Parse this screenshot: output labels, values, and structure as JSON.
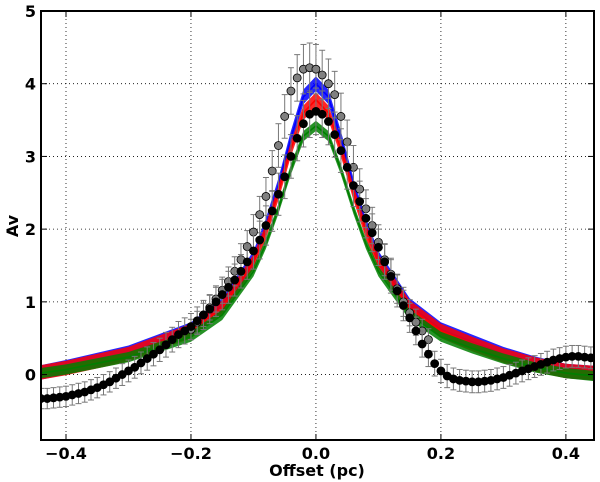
{
  "chart_data": {
    "type": "line",
    "title": "",
    "xlabel": "Offset (pc)",
    "ylabel": "Av",
    "xlim": [
      -0.44,
      0.445
    ],
    "ylim": [
      -0.9,
      5.0
    ],
    "xticks": [
      -0.4,
      -0.2,
      0.0,
      0.2,
      0.4
    ],
    "xtick_labels": [
      "−0.4",
      "−0.2",
      "0.0",
      "0.2",
      "0.4"
    ],
    "yticks": [
      0,
      1,
      2,
      3,
      4,
      5
    ],
    "ytick_labels": [
      "0",
      "1",
      "2",
      "3",
      "4",
      "5"
    ],
    "grid": true,
    "colors": {
      "blue": "#0000ff",
      "red": "#ff0000",
      "green": "#007f00",
      "gray_marker": "#808080",
      "black_marker": "#000000",
      "errorbar": "#777777"
    },
    "model_series": [
      {
        "name": "blue",
        "color": "#0000ff",
        "peak": 4.0,
        "band": 0.1,
        "x": [
          -0.44,
          -0.4,
          -0.3,
          -0.2,
          -0.15,
          -0.1,
          -0.08,
          -0.06,
          -0.04,
          -0.02,
          0.0,
          0.02,
          0.04,
          0.06,
          0.08,
          0.1,
          0.15,
          0.2,
          0.25,
          0.3,
          0.35,
          0.4,
          0.445
        ],
        "values": [
          0.03,
          0.1,
          0.3,
          0.62,
          0.95,
          1.6,
          2.05,
          2.6,
          3.25,
          3.82,
          4.0,
          3.82,
          3.25,
          2.6,
          2.05,
          1.6,
          0.95,
          0.62,
          0.45,
          0.28,
          0.15,
          0.05,
          0.02
        ]
      },
      {
        "name": "red",
        "color": "#ff0000",
        "peak": 3.78,
        "band": 0.1,
        "x": [
          -0.44,
          -0.4,
          -0.3,
          -0.2,
          -0.15,
          -0.1,
          -0.08,
          -0.06,
          -0.04,
          -0.02,
          0.0,
          0.02,
          0.04,
          0.06,
          0.08,
          0.1,
          0.15,
          0.2,
          0.25,
          0.3,
          0.35,
          0.4,
          0.445
        ],
        "values": [
          0.03,
          0.09,
          0.28,
          0.6,
          0.92,
          1.55,
          1.97,
          2.5,
          3.1,
          3.6,
          3.78,
          3.6,
          3.1,
          2.5,
          1.97,
          1.55,
          0.92,
          0.6,
          0.42,
          0.26,
          0.14,
          0.05,
          0.02
        ]
      },
      {
        "name": "green",
        "color": "#007f00",
        "peak": 3.42,
        "band": 0.07,
        "x": [
          -0.44,
          -0.4,
          -0.3,
          -0.2,
          -0.15,
          -0.1,
          -0.08,
          -0.06,
          -0.04,
          -0.02,
          0.0,
          0.02,
          0.04,
          0.06,
          0.08,
          0.1,
          0.15,
          0.2,
          0.25,
          0.3,
          0.35,
          0.4,
          0.445
        ],
        "values": [
          0.02,
          0.07,
          0.24,
          0.52,
          0.82,
          1.42,
          1.8,
          2.28,
          2.82,
          3.28,
          3.42,
          3.28,
          2.82,
          2.28,
          1.8,
          1.42,
          0.82,
          0.52,
          0.36,
          0.22,
          0.1,
          0.02,
          -0.02
        ]
      }
    ],
    "observed_series": [
      {
        "name": "gray",
        "marker": "circle",
        "color": "#808080",
        "x": [
          -0.2,
          -0.19,
          -0.18,
          -0.17,
          -0.16,
          -0.15,
          -0.14,
          -0.13,
          -0.12,
          -0.11,
          -0.1,
          -0.09,
          -0.08,
          -0.07,
          -0.06,
          -0.05,
          -0.04,
          -0.03,
          -0.02,
          -0.01,
          0.0,
          0.01,
          0.02,
          0.03,
          0.04,
          0.05,
          0.06,
          0.07,
          0.08,
          0.09,
          0.1,
          0.11,
          0.12,
          0.13,
          0.14,
          0.15,
          0.16,
          0.17,
          0.18
        ],
        "values": [
          0.62,
          0.72,
          0.82,
          0.92,
          1.04,
          1.16,
          1.28,
          1.42,
          1.58,
          1.76,
          1.96,
          2.2,
          2.45,
          2.8,
          3.15,
          3.55,
          3.9,
          4.08,
          4.2,
          4.22,
          4.2,
          4.12,
          4.0,
          3.85,
          3.55,
          3.2,
          2.85,
          2.55,
          2.28,
          2.05,
          1.82,
          1.58,
          1.38,
          1.18,
          1.0,
          0.85,
          0.72,
          0.6,
          0.48
        ],
        "errors": [
          0.14,
          0.15,
          0.16,
          0.17,
          0.18,
          0.18,
          0.2,
          0.2,
          0.22,
          0.22,
          0.24,
          0.25,
          0.26,
          0.28,
          0.3,
          0.3,
          0.32,
          0.32,
          0.34,
          0.34,
          0.34,
          0.34,
          0.34,
          0.32,
          0.32,
          0.3,
          0.3,
          0.28,
          0.26,
          0.25,
          0.24,
          0.22,
          0.22,
          0.2,
          0.2,
          0.18,
          0.18,
          0.16,
          0.15
        ]
      },
      {
        "name": "black",
        "marker": "circle",
        "color": "#000000",
        "x": [
          -0.44,
          -0.43,
          -0.42,
          -0.41,
          -0.4,
          -0.39,
          -0.38,
          -0.37,
          -0.36,
          -0.35,
          -0.34,
          -0.33,
          -0.32,
          -0.31,
          -0.3,
          -0.29,
          -0.28,
          -0.27,
          -0.26,
          -0.25,
          -0.24,
          -0.23,
          -0.22,
          -0.21,
          -0.2,
          -0.19,
          -0.18,
          -0.17,
          -0.16,
          -0.15,
          -0.14,
          -0.13,
          -0.12,
          -0.11,
          -0.1,
          -0.09,
          -0.08,
          -0.07,
          -0.06,
          -0.05,
          -0.04,
          -0.03,
          -0.02,
          -0.01,
          0.0,
          0.01,
          0.02,
          0.03,
          0.04,
          0.05,
          0.06,
          0.07,
          0.08,
          0.09,
          0.1,
          0.11,
          0.12,
          0.13,
          0.14,
          0.15,
          0.16,
          0.17,
          0.18,
          0.19,
          0.2,
          0.21,
          0.22,
          0.23,
          0.24,
          0.25,
          0.26,
          0.27,
          0.28,
          0.29,
          0.3,
          0.31,
          0.32,
          0.33,
          0.34,
          0.35,
          0.36,
          0.37,
          0.38,
          0.39,
          0.4,
          0.41,
          0.42,
          0.43,
          0.44
        ],
        "values": [
          -0.33,
          -0.33,
          -0.32,
          -0.31,
          -0.3,
          -0.28,
          -0.26,
          -0.24,
          -0.21,
          -0.18,
          -0.14,
          -0.1,
          -0.05,
          0.0,
          0.05,
          0.1,
          0.16,
          0.22,
          0.28,
          0.34,
          0.41,
          0.48,
          0.55,
          0.6,
          0.66,
          0.74,
          0.82,
          0.9,
          1.0,
          1.1,
          1.2,
          1.3,
          1.42,
          1.55,
          1.7,
          1.85,
          2.05,
          2.25,
          2.48,
          2.72,
          3.0,
          3.25,
          3.45,
          3.58,
          3.62,
          3.58,
          3.48,
          3.3,
          3.08,
          2.85,
          2.6,
          2.38,
          2.15,
          1.95,
          1.75,
          1.55,
          1.35,
          1.15,
          0.95,
          0.78,
          0.6,
          0.42,
          0.28,
          0.15,
          0.05,
          -0.02,
          -0.06,
          -0.08,
          -0.09,
          -0.1,
          -0.1,
          -0.09,
          -0.08,
          -0.06,
          -0.04,
          -0.01,
          0.02,
          0.05,
          0.08,
          0.11,
          0.14,
          0.17,
          0.2,
          0.22,
          0.24,
          0.25,
          0.25,
          0.24,
          0.23
        ],
        "errors": [
          0.14,
          0.14,
          0.14,
          0.14,
          0.14,
          0.14,
          0.14,
          0.14,
          0.14,
          0.14,
          0.14,
          0.14,
          0.14,
          0.15,
          0.15,
          0.15,
          0.15,
          0.16,
          0.16,
          0.16,
          0.17,
          0.17,
          0.18,
          0.18,
          0.18,
          0.19,
          0.2,
          0.2,
          0.2,
          0.21,
          0.22,
          0.22,
          0.23,
          0.24,
          0.25,
          0.26,
          0.27,
          0.28,
          0.29,
          0.3,
          0.3,
          0.31,
          0.32,
          0.32,
          0.32,
          0.32,
          0.32,
          0.31,
          0.3,
          0.3,
          0.29,
          0.28,
          0.27,
          0.26,
          0.25,
          0.24,
          0.23,
          0.22,
          0.21,
          0.2,
          0.19,
          0.18,
          0.17,
          0.17,
          0.16,
          0.16,
          0.15,
          0.15,
          0.15,
          0.15,
          0.15,
          0.15,
          0.15,
          0.15,
          0.15,
          0.15,
          0.15,
          0.15,
          0.15,
          0.15,
          0.15,
          0.15,
          0.15,
          0.15,
          0.15,
          0.15,
          0.15,
          0.15,
          0.15
        ]
      }
    ]
  }
}
